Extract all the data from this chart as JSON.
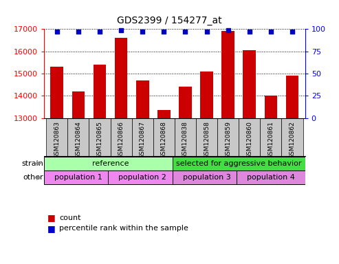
{
  "title": "GDS2399 / 154277_at",
  "samples": [
    "GSM120863",
    "GSM120864",
    "GSM120865",
    "GSM120866",
    "GSM120867",
    "GSM120868",
    "GSM120838",
    "GSM120858",
    "GSM120859",
    "GSM120860",
    "GSM120861",
    "GSM120862"
  ],
  "counts": [
    15300,
    14200,
    15400,
    16600,
    14700,
    13350,
    14400,
    15100,
    16900,
    16050,
    14000,
    14900
  ],
  "percentile_ranks": [
    97,
    97,
    97,
    99,
    97,
    97,
    97,
    97,
    99,
    97,
    97,
    97
  ],
  "ylim_left": [
    13000,
    17000
  ],
  "ylim_right": [
    0,
    100
  ],
  "yticks_left": [
    13000,
    14000,
    15000,
    16000,
    17000
  ],
  "yticks_right": [
    0,
    25,
    50,
    75,
    100
  ],
  "bar_color": "#cc0000",
  "dot_color": "#0000cc",
  "background_color": "#ffffff",
  "label_box_color": "#c8c8c8",
  "strain_row": [
    {
      "label": "reference",
      "span": [
        0,
        6
      ],
      "color": "#aaffaa"
    },
    {
      "label": "selected for aggressive behavior",
      "span": [
        6,
        12
      ],
      "color": "#44dd44"
    }
  ],
  "other_row": [
    {
      "label": "population 1",
      "span": [
        0,
        3
      ],
      "color": "#ee88ee"
    },
    {
      "label": "population 2",
      "span": [
        3,
        6
      ],
      "color": "#ee88ee"
    },
    {
      "label": "population 3",
      "span": [
        6,
        9
      ],
      "color": "#dd88dd"
    },
    {
      "label": "population 4",
      "span": [
        9,
        12
      ],
      "color": "#dd88dd"
    }
  ],
  "strain_label": "strain",
  "other_label": "other",
  "legend_count_label": "count",
  "legend_pct_label": "percentile rank within the sample",
  "title_fontsize": 10,
  "tick_fontsize": 8,
  "label_fontsize": 6.5,
  "annot_fontsize": 8
}
